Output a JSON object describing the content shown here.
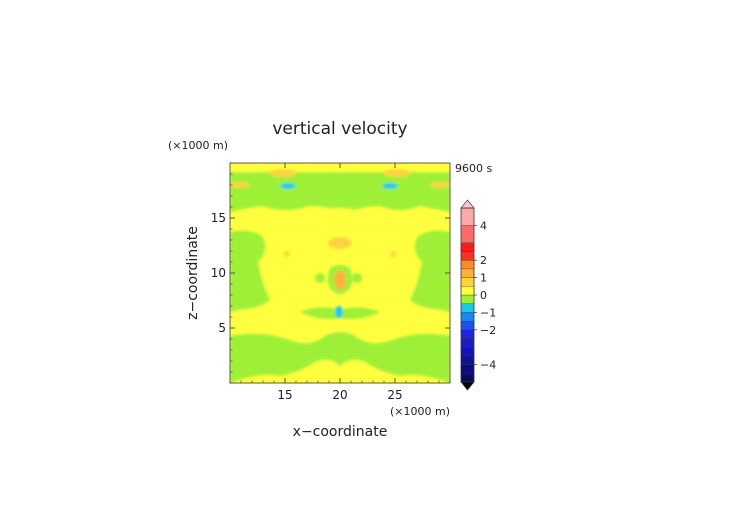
{
  "chart_data": {
    "type": "heatmap",
    "title": "vertical velocity",
    "xlabel": "x−coordinate",
    "ylabel": "z−coordinate",
    "x_unit": "(×1000 m)",
    "y_unit": "(×1000 m)",
    "time_label": "9600 s",
    "xlim": [
      10,
      30
    ],
    "ylim": [
      0,
      20
    ],
    "x_ticks": [
      15,
      20,
      25
    ],
    "y_ticks": [
      5,
      10,
      15
    ],
    "colorbar": {
      "ticks": [
        "4",
        "2",
        "1",
        "0",
        "−1",
        "−2",
        "−4"
      ],
      "levels": [
        {
          "lo": -5.0,
          "hi": -4.5,
          "color": "#0a0a5a"
        },
        {
          "lo": -4.5,
          "hi": -4.0,
          "color": "#0c0c7a"
        },
        {
          "lo": -4.0,
          "hi": -3.5,
          "color": "#10109a"
        },
        {
          "lo": -3.5,
          "hi": -3.0,
          "color": "#1414b4"
        },
        {
          "lo": -3.0,
          "hi": -2.5,
          "color": "#1a1ccc"
        },
        {
          "lo": -2.5,
          "hi": -2.0,
          "color": "#2024e0"
        },
        {
          "lo": -2.0,
          "hi": -1.5,
          "color": "#1c50f0"
        },
        {
          "lo": -1.5,
          "hi": -1.0,
          "color": "#1a86f4"
        },
        {
          "lo": -1.0,
          "hi": -0.5,
          "color": "#16c8ec"
        },
        {
          "lo": -0.5,
          "hi": 0.0,
          "color": "#9cf032"
        },
        {
          "lo": 0.0,
          "hi": 0.5,
          "color": "#ffff3a"
        },
        {
          "lo": 0.5,
          "hi": 1.0,
          "color": "#ffd23a"
        },
        {
          "lo": 1.0,
          "hi": 1.5,
          "color": "#ffae3a"
        },
        {
          "lo": 1.5,
          "hi": 2.0,
          "color": "#ff8a26"
        },
        {
          "lo": 2.0,
          "hi": 2.5,
          "color": "#ff3020"
        },
        {
          "lo": 2.5,
          "hi": 3.0,
          "color": "#ff1a1a"
        },
        {
          "lo": 3.0,
          "hi": 4.0,
          "color": "#ff6a6a"
        },
        {
          "lo": 4.0,
          "hi": 5.0,
          "color": "#ffa8a8"
        }
      ],
      "over_color": "#ffc8c8",
      "under_color": "#000000"
    }
  }
}
